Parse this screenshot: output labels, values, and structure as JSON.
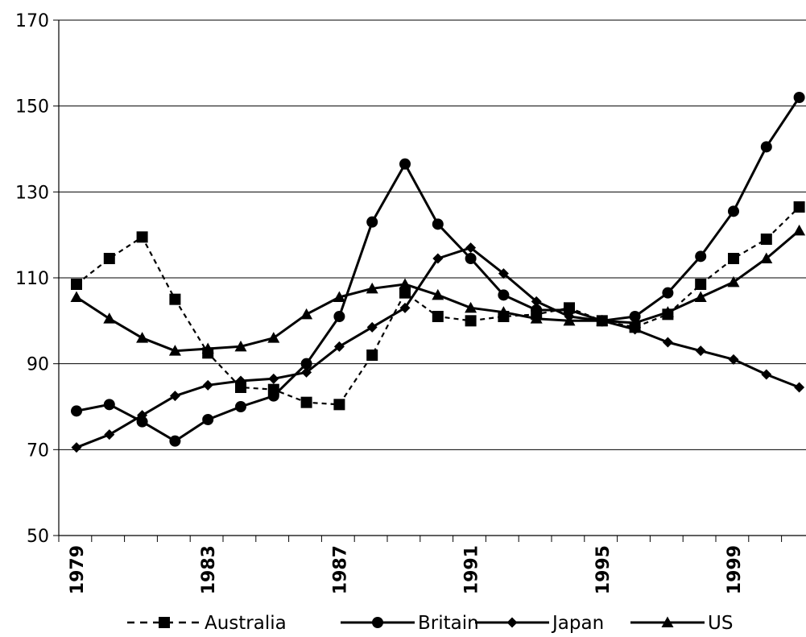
{
  "chart_data": {
    "type": "line",
    "title": "",
    "xlabel": "",
    "ylabel": "",
    "ylim": [
      50,
      170
    ],
    "yticks": [
      50,
      70,
      90,
      110,
      130,
      150,
      170
    ],
    "grid": "horizontal",
    "legend_position": "bottom",
    "x": [
      1979,
      1980,
      1981,
      1982,
      1983,
      1984,
      1985,
      1986,
      1987,
      1988,
      1989,
      1990,
      1991,
      1992,
      1993,
      1994,
      1995,
      1996,
      1997,
      1998,
      1999,
      2000,
      2001
    ],
    "xtick_labels": [
      "1979",
      "1983",
      "1987",
      "1991",
      "1995",
      "1999"
    ],
    "series": [
      {
        "name": "Australia",
        "style": "dashed",
        "marker": "square",
        "values": [
          108.5,
          114.5,
          119.5,
          105,
          92.5,
          84.5,
          84,
          81,
          80.5,
          92,
          106.5,
          101,
          100,
          101,
          101.5,
          103,
          100,
          98.5,
          101.5,
          108.5,
          114.5,
          119,
          126.5
        ]
      },
      {
        "name": "Britain",
        "style": "solid",
        "marker": "circle",
        "values": [
          79,
          80.5,
          76.5,
          72,
          77,
          80,
          82.5,
          90,
          101,
          123,
          136.5,
          122.5,
          114.5,
          106,
          102.5,
          102.5,
          100,
          101,
          106.5,
          115,
          125.5,
          140.5,
          152
        ]
      },
      {
        "name": "Japan",
        "style": "solid",
        "marker": "diamond",
        "values": [
          70.5,
          73.5,
          78,
          82.5,
          85,
          86,
          86.5,
          88,
          94,
          98.5,
          103,
          114.5,
          117,
          111,
          104.5,
          101,
          100,
          98,
          95,
          93,
          91,
          87.5,
          84.5
        ]
      },
      {
        "name": "US",
        "style": "solid",
        "marker": "triangle",
        "values": [
          105.5,
          100.5,
          96,
          93,
          93.5,
          94,
          96,
          101.5,
          105.5,
          107.5,
          108.5,
          106,
          103,
          102,
          100.5,
          100,
          100,
          99.5,
          102,
          105.5,
          109,
          114.5,
          121
        ]
      }
    ]
  }
}
